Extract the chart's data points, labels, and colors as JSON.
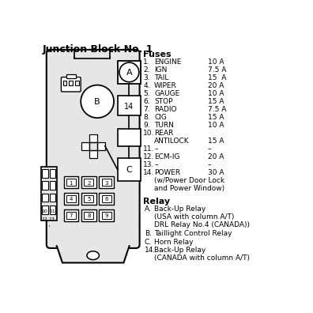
{
  "title": "Junction Block No. 1",
  "title_fontsize": 9,
  "fuses_header": "Fuses",
  "fuses": [
    {
      "num": "1.",
      "name": "ENGINE",
      "amp": "10 A"
    },
    {
      "num": "2.",
      "name": "IGN",
      "amp": "7.5 A"
    },
    {
      "num": "3.",
      "name": "TAIL",
      "amp": "15  A"
    },
    {
      "num": "4.",
      "name": "WIPER",
      "amp": "20 A"
    },
    {
      "num": "5.",
      "name": "GAUGE",
      "amp": "10 A"
    },
    {
      "num": "6.",
      "name": "STOP",
      "amp": "15 A"
    },
    {
      "num": "7.",
      "name": "RADIO",
      "amp": "7.5 A"
    },
    {
      "num": "8.",
      "name": "CIG",
      "amp": "15 A"
    },
    {
      "num": "9.",
      "name": "TURN",
      "amp": "10 A"
    },
    {
      "num": "10.",
      "name": "REAR",
      "amp": ""
    },
    {
      "num": "",
      "name": "ANTILOCK",
      "amp": "15 A"
    },
    {
      "num": "11.",
      "name": "–",
      "amp": "–"
    },
    {
      "num": "12.",
      "name": "ECM-IG",
      "amp": "20 A"
    },
    {
      "num": "13.",
      "name": "–",
      "amp": "–"
    },
    {
      "num": "14.",
      "name": "POWER",
      "amp": "30 A"
    }
  ],
  "fuse14_extra1": "(w/Power Door Lock",
  "fuse14_extra2": "and Power Window)",
  "relay_header": "Relay",
  "relays": [
    {
      "label": "A.",
      "lines": [
        "Back-Up Relay",
        "(USA with column A/T)",
        "DRL Relay No.4 (CANADA))"
      ]
    },
    {
      "label": "B.",
      "lines": [
        "Taillight Control Relay"
      ]
    },
    {
      "label": "C.",
      "lines": [
        "Horn Relay"
      ]
    },
    {
      "label": "14.",
      "lines": [
        "Back-Up Relay",
        "(CANADA with column A/T)"
      ]
    }
  ],
  "bg_color": "#ffffff",
  "text_color": "#000000",
  "diagram_edge": "#000000",
  "diagram_fill_body": "#e6e6e6",
  "diagram_fill_relay": "#d0d0d0",
  "diagram_fill_white": "#ffffff"
}
